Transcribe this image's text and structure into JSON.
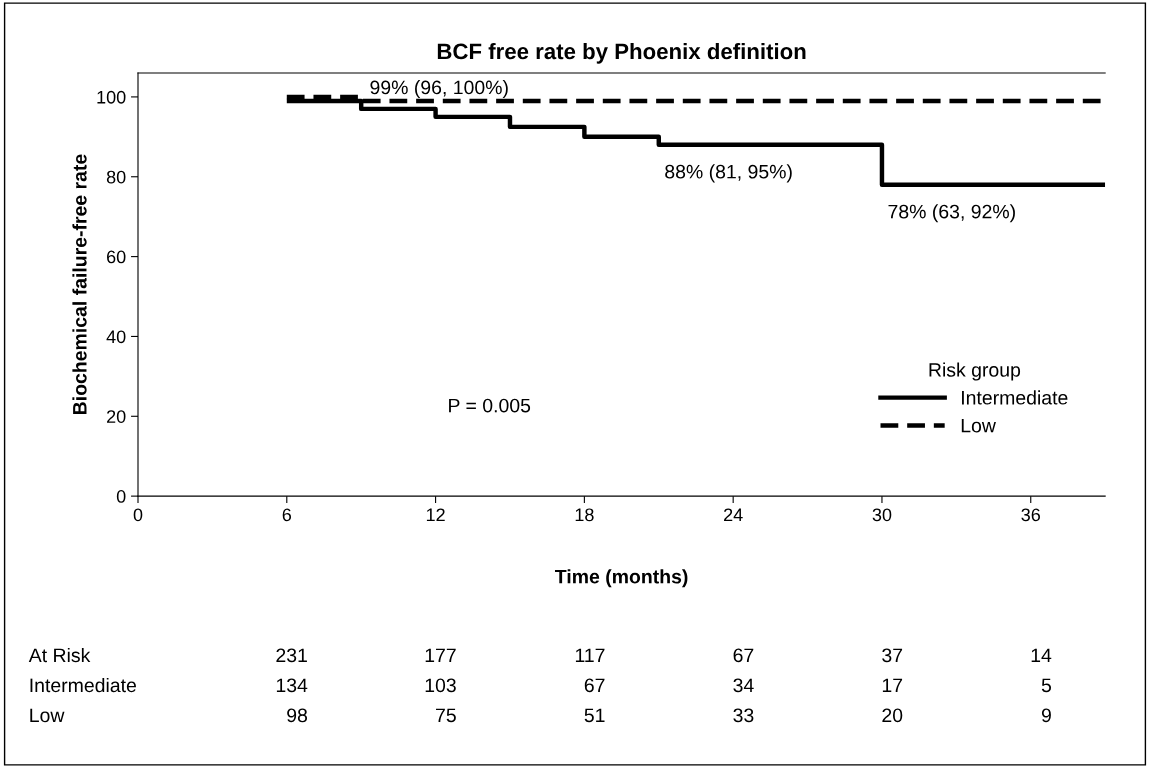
{
  "chart_data": {
    "type": "step",
    "title": "BCF free rate by Phoenix definition",
    "xlabel": "Time (months)",
    "ylabel": "Biochemical failure-free rate",
    "legend_title": "Risk group",
    "series": [
      {
        "name": "Intermediate",
        "color": "#000000",
        "line_style": "solid",
        "x": [
          6,
          9,
          12,
          15,
          18,
          21,
          30,
          39
        ],
        "values": [
          99,
          97,
          95,
          92.5,
          90,
          88,
          78,
          78
        ]
      },
      {
        "name": "Low",
        "color": "#000000",
        "line_style": "dashed",
        "x": [
          6,
          9,
          39
        ],
        "values": [
          100,
          99,
          99
        ]
      }
    ],
    "annotations": [
      {
        "text": "99% (96, 100%)",
        "x": 9,
        "y": 99
      },
      {
        "text": "88% (81, 95%)",
        "x": 21,
        "y": 88
      },
      {
        "text": "78% (63, 92%)",
        "x": 30,
        "y": 78
      },
      "P = 0.005",
      "At Risk",
      "231",
      "177",
      "117",
      "67",
      "37",
      "14",
      "Intermediate",
      "134",
      "103",
      "67",
      "34",
      "17",
      "5",
      "Low",
      "98",
      "75",
      "51",
      "33",
      "20",
      "9"
    ],
    "xlim": [
      0,
      39
    ],
    "xticks": [
      0,
      6,
      12,
      18,
      24,
      30,
      36
    ],
    "ylim": [
      0,
      106
    ],
    "yticks": [
      0,
      20,
      40,
      60,
      80,
      100
    ],
    "grid": false,
    "legend": "bottom right",
    "marker": "none"
  }
}
